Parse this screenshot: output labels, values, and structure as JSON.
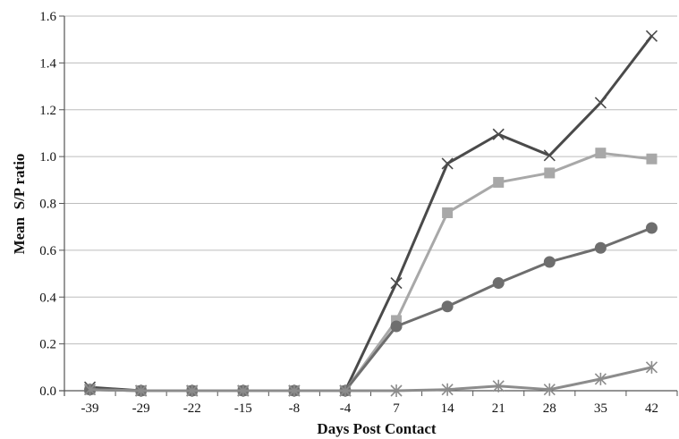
{
  "chart_data": {
    "type": "line",
    "xlabel": "Days Post Contact",
    "ylabel": "Mean  S/P ratio",
    "categories": [
      "-39",
      "-29",
      "-22",
      "-15",
      "-8",
      "-4",
      "7",
      "14",
      "21",
      "28",
      "35",
      "42"
    ],
    "ylim": [
      0,
      1.6
    ],
    "yticks": [
      "0.0",
      "0.2",
      "0.4",
      "0.6",
      "0.8",
      "1.0",
      "1.2",
      "1.4",
      "1.6"
    ],
    "grid": "horizontal",
    "legend": "none",
    "series": [
      {
        "marker": "x",
        "color": "#4a4a4a",
        "values": [
          0.015,
          0.0,
          0.0,
          0.0,
          0.0,
          0.0,
          0.46,
          0.97,
          1.095,
          1.005,
          1.23,
          1.515
        ]
      },
      {
        "marker": "square",
        "color": "#a8a8a8",
        "values": [
          0.005,
          0.0,
          0.0,
          0.0,
          0.0,
          0.0,
          0.3,
          0.76,
          0.89,
          0.93,
          1.015,
          0.99
        ]
      },
      {
        "marker": "circle",
        "color": "#6e6e6e",
        "values": [
          0.005,
          0.0,
          0.0,
          0.0,
          0.0,
          0.0,
          0.275,
          0.36,
          0.46,
          0.55,
          0.61,
          0.695
        ]
      },
      {
        "marker": "asterisk",
        "color": "#8c8c8c",
        "values": [
          0.005,
          0.0,
          0.0,
          0.0,
          0.0,
          0.0,
          0.0,
          0.005,
          0.02,
          0.005,
          0.05,
          0.1
        ]
      }
    ]
  }
}
